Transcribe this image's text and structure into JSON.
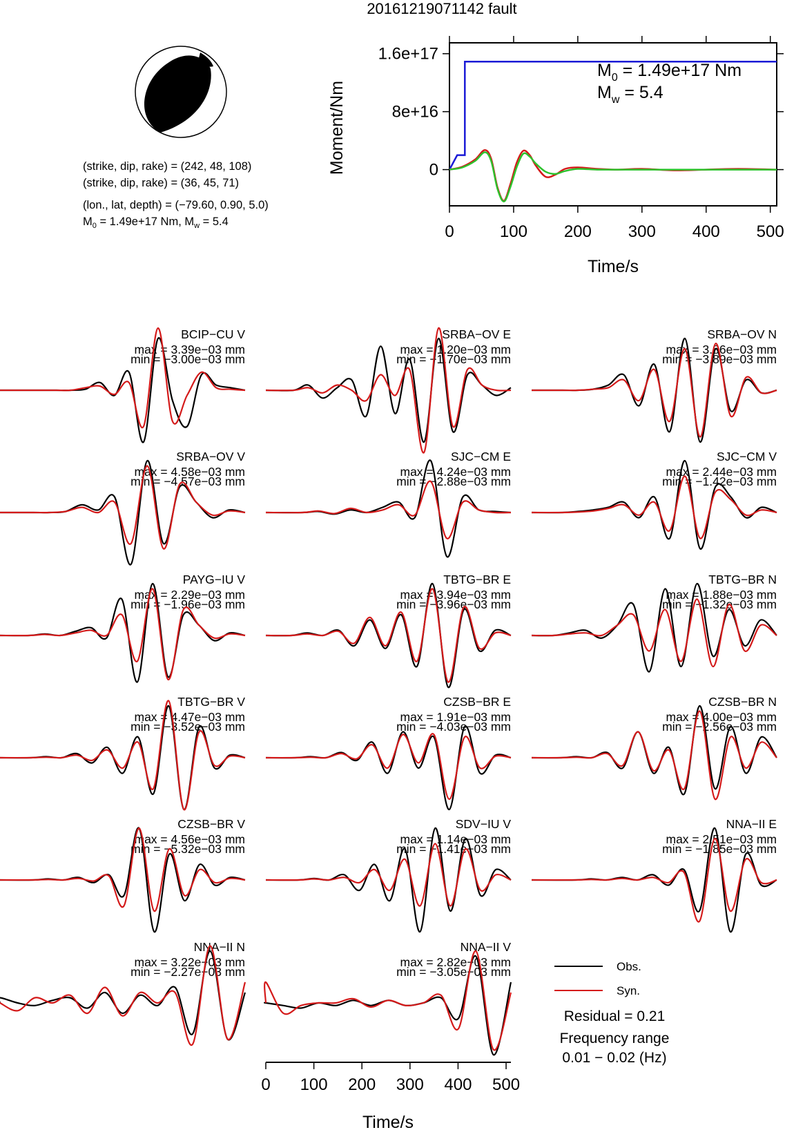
{
  "title": "20161219071142 fault",
  "mechanism": {
    "line1": "(strike, dip, rake) = (242, 48, 108)",
    "line2": "(strike, dip, rake) = (36, 45, 71)",
    "line3": "(lon., lat, depth) = (−79.60, 0.90, 5.0)",
    "line4_prefix": "M",
    "line4_sub": "0",
    "line4_mid": " = 1.49e+17 Nm, M",
    "line4_sub2": "w",
    "line4_end": " = 5.4"
  },
  "moment_plot": {
    "ylabel": "Moment/Nm",
    "xlabel": "Time/s",
    "yticks": [
      "0",
      "8e+16",
      "1.6e+17"
    ],
    "xticks": [
      "0",
      "100",
      "200",
      "300",
      "400",
      "500"
    ],
    "m0_text": {
      "pre": "M",
      "sub": "0",
      "post": " = 1.49e+17 Nm"
    },
    "mw_text": {
      "pre": "M",
      "sub": "w",
      "post": " = 5.4"
    }
  },
  "chart_data": [
    {
      "type": "line",
      "title": "",
      "xlabel": "Time/s",
      "ylabel": "Moment/Nm",
      "xlim": [
        0,
        510
      ],
      "ylim": [
        -5e+16,
        1.75e+17
      ],
      "series": [
        {
          "x": [
            0,
            12,
            24,
            24,
            30,
            510
          ],
          "y": [
            0,
            2e+16,
            2e+16,
            1.49e+17,
            1.49e+17,
            1.49e+17
          ],
          "color": "#1a1ad6"
        },
        {
          "x": [
            0,
            20,
            40,
            55,
            65,
            75,
            85,
            95,
            105,
            115,
            125,
            135,
            150,
            165,
            180,
            200,
            230,
            260,
            300,
            350,
            400,
            450,
            510
          ],
          "y": [
            0,
            4000000000000000.0,
            1.4e+16,
            2.7e+16,
            1.5e+16,
            -2.5e+16,
            -4.3e+16,
            -2e+16,
            1e+16,
            2.6e+16,
            2e+16,
            5000000000000000.0,
            -1e+16,
            -7000000000000000.0,
            1000000000000000.0,
            3000000000000000.0,
            1000000000000000.0,
            0.0,
            1000000000000000.0,
            -1000000000000000.0,
            0.0,
            1000000000000000.0,
            0.0
          ],
          "color": "#d41a1a"
        },
        {
          "x": [
            0,
            20,
            40,
            55,
            65,
            75,
            85,
            95,
            105,
            115,
            125,
            135,
            150,
            165,
            180,
            200,
            230,
            260,
            300,
            350,
            400,
            450,
            510
          ],
          "y": [
            0,
            3000000000000000.0,
            1.2e+16,
            2.4e+16,
            1.2e+16,
            -2.7e+16,
            -4.4e+16,
            -2.4e+16,
            4000000000000000.0,
            2.2e+16,
            1.8e+16,
            8000000000000000.0,
            -3000000000000000.0,
            -6000000000000000.0,
            -2000000000000000.0,
            1000000000000000.0,
            0.0,
            0.0,
            0.0,
            0.0,
            0.0,
            0.0,
            0.0
          ],
          "color": "#2dc22d"
        }
      ]
    },
    {
      "type": "line",
      "title": "",
      "xlabel": "Time/s",
      "xlim": [
        0,
        510
      ],
      "xticks": [
        "0",
        "100",
        "200",
        "300",
        "400",
        "500"
      ],
      "series": [
        {
          "name": "Obs.",
          "color": "#000000"
        },
        {
          "name": "Syn.",
          "color": "#d41a1a"
        }
      ],
      "panels": [
        {
          "station": "BCIP−CU V",
          "max": "max = 3.39e−03 mm",
          "min": "min = −3.00e−03 mm",
          "t0": 0.57,
          "obs": [
            0,
            0,
            0,
            0.02,
            0.15,
            -0.1,
            0.35,
            -1.0,
            1.0,
            -0.2,
            -0.7,
            0.3,
            0.1,
            0.05,
            0
          ],
          "syn": [
            0,
            0,
            0,
            0.05,
            0.08,
            -0.08,
            0.15,
            -0.7,
            1.2,
            -0.6,
            -0.1,
            0.35,
            0.05,
            0.02,
            0
          ]
        },
        {
          "station": "SRBA−OV E",
          "max": "max = 1.20e−03 mm",
          "min": "min = −1.70e−03 mm",
          "t0": 0.38,
          "obs": [
            0,
            0.1,
            -0.15,
            0.05,
            0.2,
            -0.5,
            0.85,
            -0.45,
            0.6,
            -1.0,
            1.0,
            -0.8,
            0.3,
            0.1,
            -0.1,
            0.05
          ],
          "syn": [
            0,
            0.05,
            -0.05,
            0.1,
            0.0,
            -0.2,
            0.3,
            -0.1,
            0.4,
            -1.2,
            1.2,
            -0.7,
            0.4,
            0.1,
            0.0,
            0.0
          ]
        },
        {
          "station": "SRBA−OV N",
          "max": "max = 3.86e−03 mm",
          "min": "min = −3.89e−03 mm",
          "t0": 0.42,
          "obs": [
            0,
            0,
            0.02,
            0.1,
            0.3,
            -0.3,
            0.5,
            -0.8,
            1.0,
            -1.0,
            0.8,
            -0.4,
            0.2,
            -0.05,
            0
          ],
          "syn": [
            0,
            0,
            0.02,
            0.05,
            0.2,
            -0.2,
            0.4,
            -0.6,
            0.8,
            -0.9,
            0.9,
            -0.5,
            0.25,
            -0.05,
            0
          ]
        },
        {
          "station": "SRBA−OV V",
          "max": "max = 4.58e−03 mm",
          "min": "min = −4.57e−03 mm",
          "t0": 0.45,
          "obs": [
            0,
            0,
            0.02,
            0.15,
            0.05,
            0.3,
            -1.0,
            1.0,
            -0.6,
            0.5,
            0.2,
            -0.1,
            0.05,
            0
          ],
          "syn": [
            0,
            0,
            0.02,
            0.1,
            0.0,
            0.2,
            -0.6,
            0.9,
            -0.7,
            0.55,
            0.2,
            -0.05,
            0.03,
            0
          ]
        },
        {
          "station": "SJC−CM E",
          "max": "max = 4.24e−03 mm",
          "min": "min = −2.88e−03 mm",
          "t0": 0.5,
          "obs": [
            0,
            0.02,
            -0.03,
            0.05,
            0.0,
            0.1,
            0.2,
            -0.1,
            1.0,
            -0.85,
            0.3,
            0.05,
            0.02,
            0
          ],
          "syn": [
            0,
            0.03,
            -0.02,
            0.08,
            0.0,
            0.05,
            0.15,
            -0.05,
            0.6,
            -0.5,
            0.2,
            0.05,
            0.0,
            0
          ]
        },
        {
          "station": "SJC−CM V",
          "max": "max = 2.44e−03 mm",
          "min": "min = −1.42e−03 mm",
          "t0": 0.42,
          "obs": [
            0,
            0.02,
            0.05,
            0.1,
            0.2,
            -0.1,
            0.3,
            -0.5,
            1.0,
            -0.7,
            0.5,
            0.3,
            -0.1,
            0.1,
            0
          ],
          "syn": [
            0,
            0.01,
            0.03,
            0.08,
            0.15,
            -0.05,
            0.2,
            -0.35,
            0.7,
            -0.5,
            0.4,
            0.25,
            -0.05,
            0.05,
            0
          ]
        },
        {
          "station": "PAYG−IU V",
          "max": "max = 2.29e−03 mm",
          "min": "min = −1.96e−03 mm",
          "t0": 0.4,
          "obs": [
            0,
            0.03,
            0.0,
            0.08,
            0.15,
            -0.05,
            0.7,
            -0.9,
            1.0,
            -0.8,
            0.4,
            0.2,
            -0.1,
            0.05,
            0
          ],
          "syn": [
            0,
            0.02,
            0.0,
            0.05,
            0.1,
            0.0,
            0.4,
            -0.5,
            0.9,
            -0.85,
            0.5,
            0.2,
            -0.05,
            0.03,
            0
          ]
        },
        {
          "station": "TBTG−BR E",
          "max": "max = 3.94e−03 mm",
          "min": "min = −3.96e−03 mm",
          "t0": 0.35,
          "obs": [
            0,
            0.05,
            0.0,
            0.1,
            -0.2,
            0.3,
            -0.25,
            0.4,
            -0.6,
            1.0,
            -1.0,
            0.5,
            -0.3,
            0.1,
            0
          ],
          "syn": [
            0,
            0.03,
            0.0,
            0.08,
            -0.15,
            0.35,
            -0.2,
            0.45,
            -0.5,
            0.9,
            -0.9,
            0.55,
            -0.25,
            0.05,
            0
          ]
        },
        {
          "station": "TBTG−BR N",
          "max": "max = 1.88e−03 mm",
          "min": "min = −1.32e−03 mm",
          "t0": 0.3,
          "obs": [
            0,
            0.05,
            0.1,
            -0.05,
            0.2,
            0.6,
            -0.7,
            0.9,
            -0.6,
            1.0,
            -0.4,
            0.5,
            -0.2,
            0.3,
            0
          ],
          "syn": [
            0,
            0.03,
            0.05,
            0.0,
            0.2,
            0.4,
            -0.3,
            0.5,
            -0.5,
            0.7,
            -0.6,
            0.6,
            -0.3,
            0.2,
            0
          ]
        },
        {
          "station": "TBTG−BR V",
          "max": "max = 4.47e−03 mm",
          "min": "min = −3.52e−03 mm",
          "t0": 0.42,
          "obs": [
            0,
            0.02,
            0.0,
            0.08,
            -0.1,
            0.2,
            -0.3,
            0.4,
            -0.7,
            1.0,
            -1.0,
            0.6,
            -0.2,
            0.05,
            0
          ],
          "syn": [
            0,
            0.01,
            0.0,
            0.05,
            -0.05,
            0.15,
            -0.2,
            0.3,
            -0.6,
            1.1,
            -1.0,
            0.5,
            -0.15,
            0.03,
            0
          ]
        },
        {
          "station": "CZSB−BR E",
          "max": "max = 1.91e−03 mm",
          "min": "min = −4.03e−03 mm",
          "t0": 0.4,
          "obs": [
            0,
            0.02,
            0.0,
            0.1,
            -0.05,
            0.3,
            -0.3,
            0.5,
            -0.2,
            0.4,
            -1.0,
            0.6,
            -0.3,
            0.05,
            0
          ],
          "syn": [
            0,
            0.01,
            0.0,
            0.08,
            -0.02,
            0.25,
            -0.2,
            0.45,
            -0.1,
            0.45,
            -0.8,
            0.4,
            -0.2,
            0.03,
            0
          ]
        },
        {
          "station": "CZSB−BR N",
          "max": "max = 4.00e−03 mm",
          "min": "min = −2.56e−03 mm",
          "t0": 0.4,
          "obs": [
            0,
            0.02,
            0.0,
            0.1,
            -0.2,
            0.5,
            -0.3,
            0.2,
            -0.7,
            1.0,
            -0.6,
            0.6,
            -0.3,
            0.4,
            0
          ],
          "syn": [
            0,
            0.01,
            0.0,
            0.08,
            -0.15,
            0.5,
            -0.25,
            0.15,
            -0.6,
            0.9,
            -0.8,
            0.4,
            -0.2,
            0.3,
            0
          ]
        },
        {
          "station": "CZSB−BR V",
          "max": "max = 4.56e−03 mm",
          "min": "min = −5.32e−03 mm",
          "t0": 0.45,
          "obs": [
            0,
            0.02,
            0.0,
            0.05,
            -0.05,
            0.1,
            -0.3,
            1.0,
            -1.0,
            0.5,
            -0.4,
            0.3,
            -0.1,
            0.05,
            0
          ],
          "syn": [
            0,
            0.01,
            0.0,
            0.03,
            -0.02,
            0.08,
            -0.5,
            1.0,
            -0.6,
            0.6,
            -0.3,
            0.2,
            -0.05,
            0.03,
            0
          ]
        },
        {
          "station": "SDV−IU V",
          "max": "max = 1.14e−03 mm",
          "min": "min = −1.41e−03 mm",
          "t0": 0.45,
          "obs": [
            0,
            0.03,
            0.0,
            0.1,
            -0.2,
            0.3,
            -0.4,
            0.6,
            -1.0,
            1.0,
            -0.6,
            0.8,
            -0.3,
            0.2,
            0
          ],
          "syn": [
            0,
            0.02,
            0.0,
            0.05,
            -0.05,
            0.2,
            -0.2,
            0.4,
            -0.5,
            0.7,
            -0.5,
            0.6,
            -0.2,
            0.1,
            0
          ]
        },
        {
          "station": "NNA−II E",
          "max": "max = 2.51e−03 mm",
          "min": "min = −1.85e−03 mm",
          "t0": 0.6,
          "obs": [
            0,
            0.02,
            0.0,
            0.05,
            0.0,
            0.1,
            -0.1,
            0.2,
            -0.6,
            1.0,
            -1.0,
            0.5,
            -0.1,
            0
          ],
          "syn": [
            0,
            0.01,
            0.0,
            0.03,
            0.0,
            0.05,
            -0.05,
            0.15,
            -0.8,
            0.8,
            -0.6,
            0.4,
            -0.05,
            0
          ]
        },
        {
          "station": "NNA−II N",
          "max": "max = 3.22e−03 mm",
          "min": "min = −2.27e−03 mm",
          "t0": 0.0,
          "obs": [
            0.1,
            0.0,
            -0.05,
            0.05,
            0.1,
            -0.1,
            0.2,
            -0.2,
            0.15,
            -0.05,
            0.3,
            -0.6,
            1.0,
            -0.7,
            0.2
          ],
          "syn": [
            0.0,
            -0.15,
            0.1,
            0.0,
            0.15,
            -0.2,
            0.3,
            -0.25,
            0.2,
            0.0,
            0.2,
            -0.8,
            1.1,
            -0.7,
            0.4
          ]
        },
        {
          "station": "NNA−II V",
          "max": "max = 2.82e−03 mm",
          "min": "min = −3.05e−03 mm",
          "t0": 0.0,
          "obs": [
            0.0,
            -0.05,
            -0.1,
            0.0,
            -0.05,
            0.05,
            -0.05,
            0.05,
            -0.05,
            0.0,
            0.1,
            -0.3,
            0.9,
            -1.0,
            0.4
          ],
          "syn": [
            0.4,
            -0.2,
            -0.05,
            0.0,
            0.0,
            0.08,
            -0.08,
            0.05,
            -0.05,
            0.0,
            0.15,
            -0.5,
            1.0,
            -0.9,
            0.2
          ]
        }
      ]
    }
  ],
  "legend": {
    "obs": "Obs.",
    "syn": "Syn.",
    "residual": "Residual = 0.21",
    "freq_label": "Frequency range",
    "freq_value": "0.01 − 0.02 (Hz)"
  }
}
